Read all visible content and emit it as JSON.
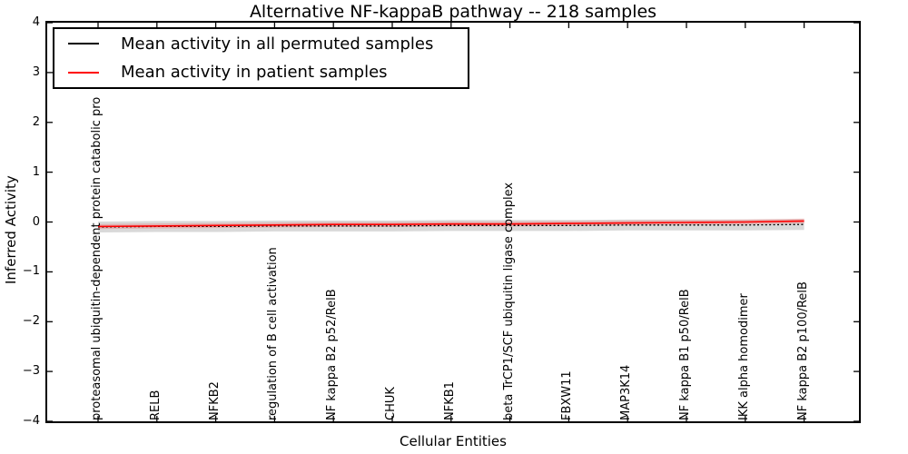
{
  "chart_data": {
    "type": "line",
    "title": "Alternative NF-kappaB pathway -- 218 samples",
    "xlabel": "Cellular Entities",
    "ylabel": "Inferred Activity",
    "ylim": [
      -4,
      4
    ],
    "yticks": [
      4,
      3,
      2,
      1,
      0,
      -1,
      -2,
      -3,
      -4
    ],
    "grid": false,
    "legend_position": "upper left",
    "categories": [
      "proteasomal ubiquitin-dependent protein catabolic pro",
      "RELB",
      "NFKB2",
      "regulation of B cell activation",
      "NF kappa B2 p52/RelB",
      "CHUK",
      "NFKB1",
      "beta TrCP1/SCF ubiquitin ligase complex",
      "FBXW11",
      "MAP3K14",
      "NF kappa B1 p50/RelB",
      "IKK alpha homodimer",
      "NF kappa B2 p100/RelB"
    ],
    "series": [
      {
        "name": "Mean activity in all permuted samples",
        "color": "#000000",
        "line_style": "dotted",
        "values": [
          -0.1,
          -0.09,
          -0.09,
          -0.08,
          -0.08,
          -0.08,
          -0.07,
          -0.07,
          -0.07,
          -0.06,
          -0.06,
          -0.06,
          -0.05
        ],
        "band_halfwidth": 0.11,
        "band_color": "rgba(0,0,0,0.15)"
      },
      {
        "name": "Mean activity in patient samples",
        "color": "#ff0000",
        "line_style": "solid",
        "values": [
          -0.09,
          -0.08,
          -0.07,
          -0.06,
          -0.05,
          -0.05,
          -0.04,
          -0.04,
          -0.03,
          -0.02,
          -0.01,
          0.0,
          0.02
        ],
        "band_halfwidth": 0.05,
        "band_color": "rgba(255,0,0,0.18)"
      }
    ]
  },
  "legend": {
    "items": [
      {
        "label": "Mean activity in all permuted samples",
        "color": "#000000"
      },
      {
        "label": "Mean activity in patient samples",
        "color": "#ff0000"
      }
    ]
  }
}
